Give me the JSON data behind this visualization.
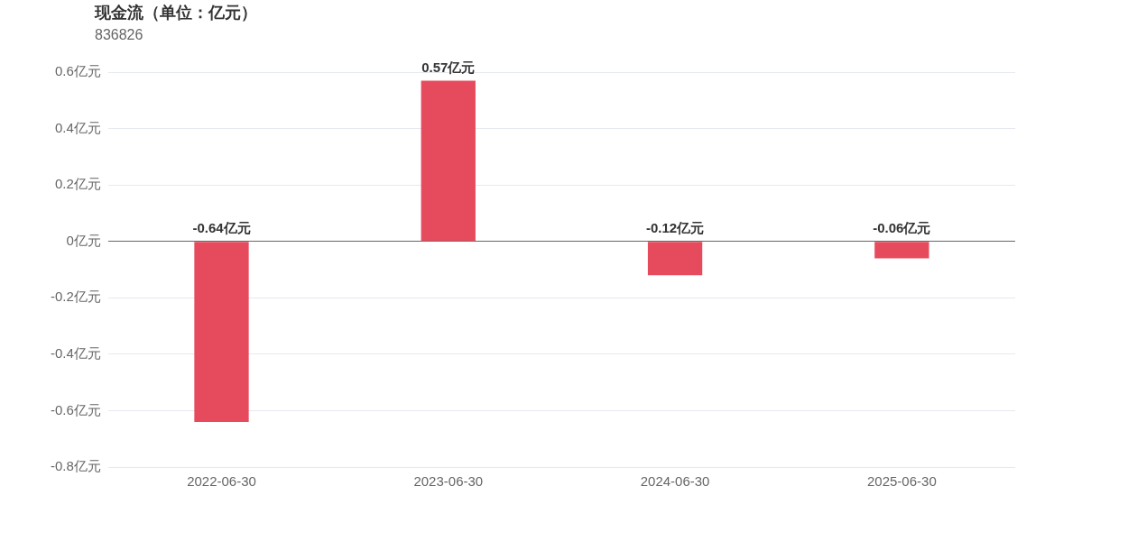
{
  "chart_data": {
    "type": "bar",
    "title": "现金流（单位：亿元）",
    "subtitle": "836826",
    "categories": [
      "2022-06-30",
      "2023-06-30",
      "2024-06-30",
      "2025-06-30"
    ],
    "values": [
      -0.64,
      0.57,
      -0.12,
      -0.06
    ],
    "color": "#e64b5d",
    "value_labels": [
      "-0.64亿元",
      "0.57亿元",
      "-0.12亿元",
      "-0.06亿元"
    ],
    "ylim": [
      -0.8,
      0.6
    ],
    "yticks": [
      {
        "value": -0.8,
        "label": "-0.8亿元"
      },
      {
        "value": -0.6,
        "label": "-0.6亿元"
      },
      {
        "value": -0.4,
        "label": "-0.4亿元"
      },
      {
        "value": -0.2,
        "label": "-0.2亿元"
      },
      {
        "value": 0,
        "label": "0亿元"
      },
      {
        "value": 0.2,
        "label": "0.2亿元"
      },
      {
        "value": 0.4,
        "label": "0.4亿元"
      },
      {
        "value": 0.6,
        "label": "0.6亿元"
      }
    ],
    "grid": "y",
    "legend": false
  }
}
